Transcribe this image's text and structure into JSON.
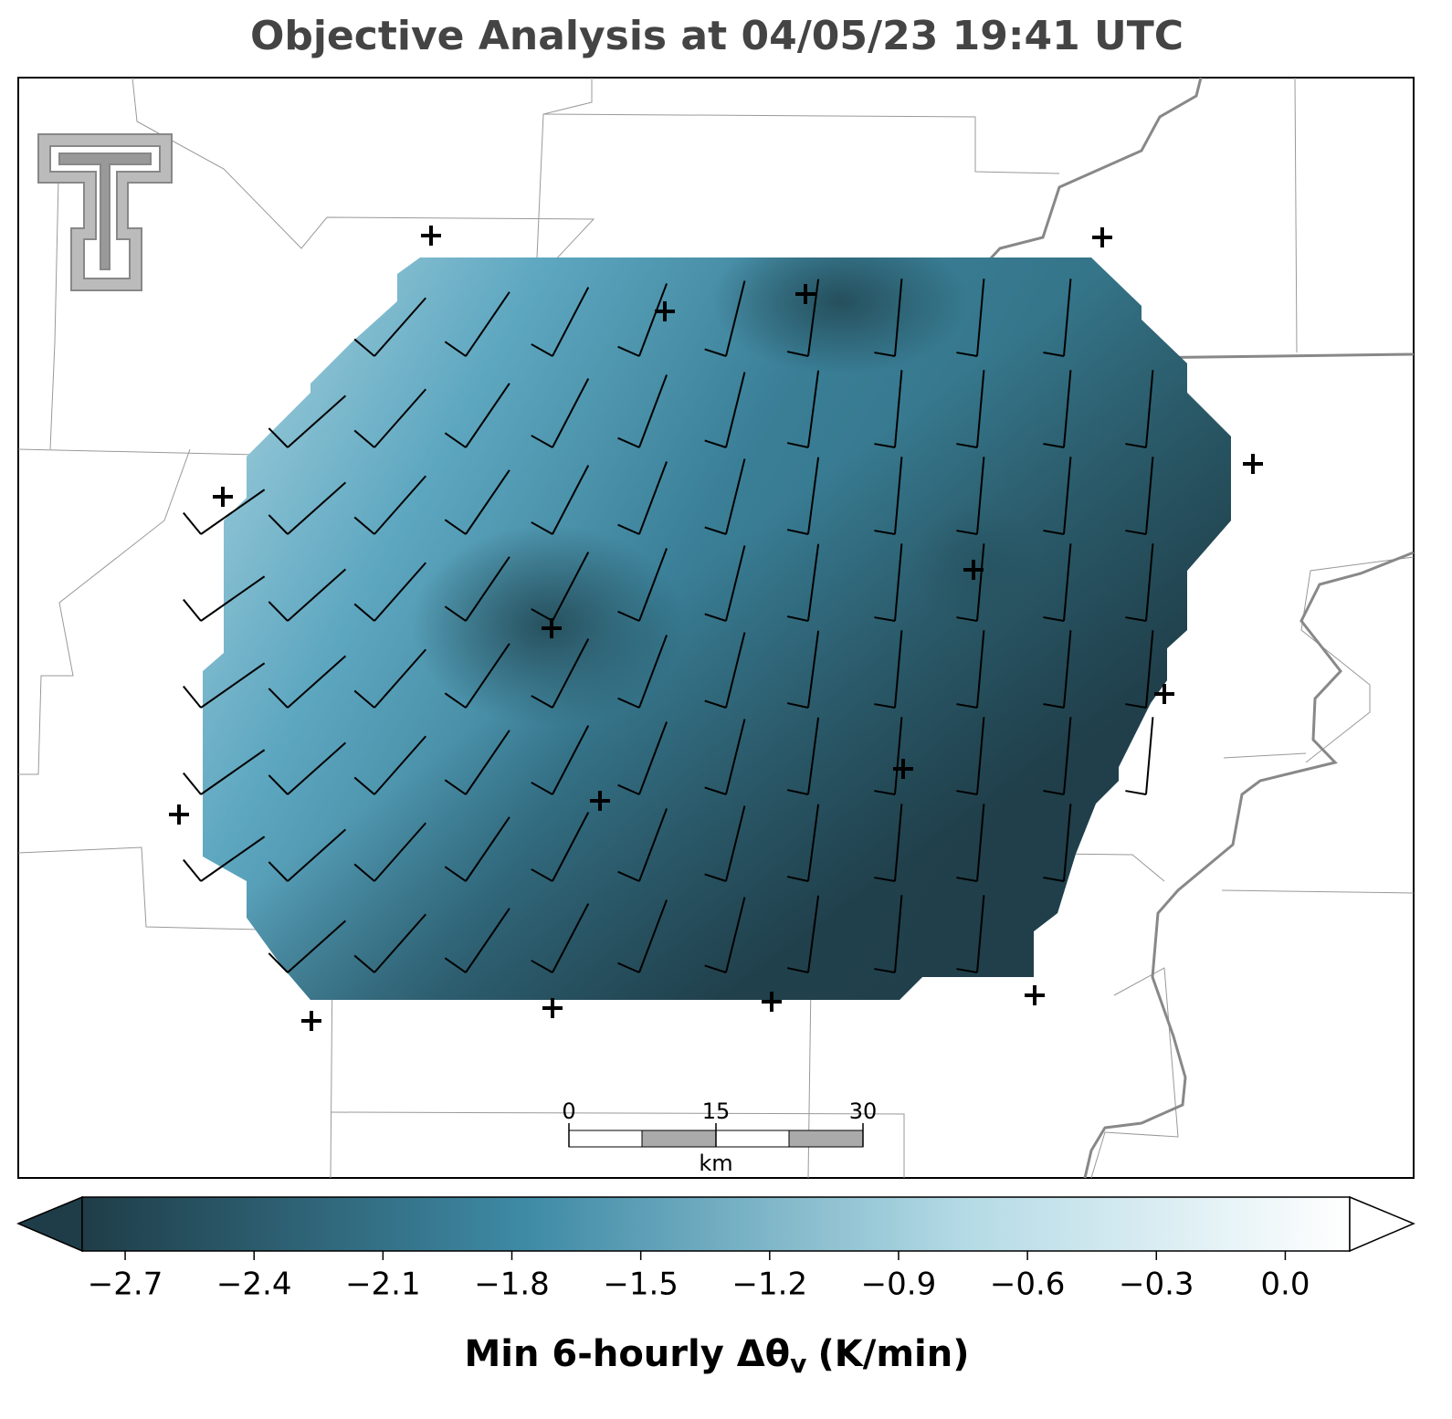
{
  "title": "Objective Analysis at 04/05/23 19:41 UTC",
  "colorbar": {
    "label_prefix": "Min 6-hourly Δθ",
    "label_subscript": "v",
    "label_suffix": "(K/min)",
    "range": [
      -2.8,
      0.15
    ],
    "ticks": [
      {
        "value": -2.7,
        "label": "−2.7"
      },
      {
        "value": -2.4,
        "label": "−2.4"
      },
      {
        "value": -2.1,
        "label": "−2.1"
      },
      {
        "value": -1.8,
        "label": "−1.8"
      },
      {
        "value": -1.5,
        "label": "−1.5"
      },
      {
        "value": -1.2,
        "label": "−1.2"
      },
      {
        "value": -0.9,
        "label": "−0.9"
      },
      {
        "value": -0.6,
        "label": "−0.6"
      },
      {
        "value": -0.3,
        "label": "−0.3"
      },
      {
        "value": 0.0,
        "label": "0.0"
      }
    ]
  },
  "scalebar": {
    "ticks": [
      0,
      15,
      30
    ],
    "unit": "km"
  }
}
